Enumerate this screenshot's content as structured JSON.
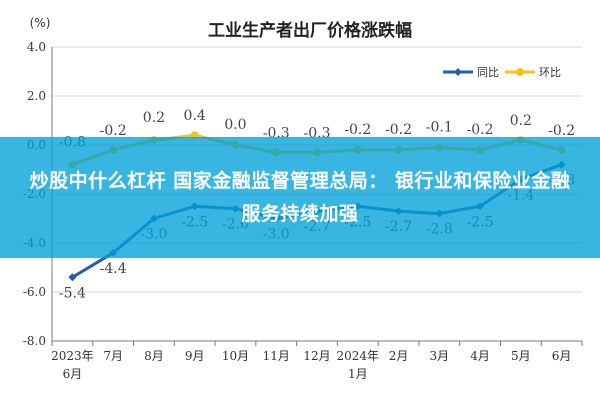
{
  "chart_data": {
    "type": "line",
    "title": "工业生产者出厂价格涨跌幅",
    "unit": "(%)",
    "ylim": [
      -8.0,
      4.0
    ],
    "yticks": [
      "4.0",
      "2.0",
      "0.0",
      "-2.0",
      "-4.0",
      "-6.0",
      "-8.0"
    ],
    "categories": [
      [
        "2023年",
        "6月"
      ],
      [
        "7月"
      ],
      [
        "8月"
      ],
      [
        "9月"
      ],
      [
        "10月"
      ],
      [
        "11月"
      ],
      [
        "12月"
      ],
      [
        "2024年",
        "1月"
      ],
      [
        "2月"
      ],
      [
        "3月"
      ],
      [
        "4月"
      ],
      [
        "5月"
      ],
      [
        "6月"
      ]
    ],
    "grid": true,
    "legend": "top-right",
    "series": [
      {
        "name": "同比",
        "color": "#1f5fae",
        "values": [
          -5.4,
          -4.4,
          -3.0,
          -2.5,
          -2.6,
          -3.0,
          -2.7,
          -2.5,
          -2.7,
          -2.8,
          -2.5,
          -1.4,
          -0.8
        ],
        "labels": [
          "-5.4",
          "-4.4",
          "-3.0",
          "-2.5",
          "-2.6",
          "-3.0",
          "-2.7",
          "-2.5",
          "-2.7",
          "-2.8",
          "-2.5",
          "-1.4",
          "-0.8"
        ]
      },
      {
        "name": "环比",
        "color": "#f2c318",
        "values": [
          -0.8,
          -0.2,
          0.2,
          0.4,
          0.0,
          -0.3,
          -0.3,
          -0.2,
          -0.2,
          -0.1,
          -0.2,
          0.2,
          -0.2
        ],
        "labels": [
          "-0.8",
          "-0.2",
          "0.2",
          "0.4",
          "0.0",
          "-0.3",
          "-0.3",
          "-0.2",
          "-0.2",
          "-0.1",
          "-0.2",
          "0.2",
          "-0.2"
        ]
      }
    ]
  },
  "banner": {
    "text": "炒股中什么杠杆 国家金融监督管理总局： 银行业和保险业金融服务持续加强"
  }
}
